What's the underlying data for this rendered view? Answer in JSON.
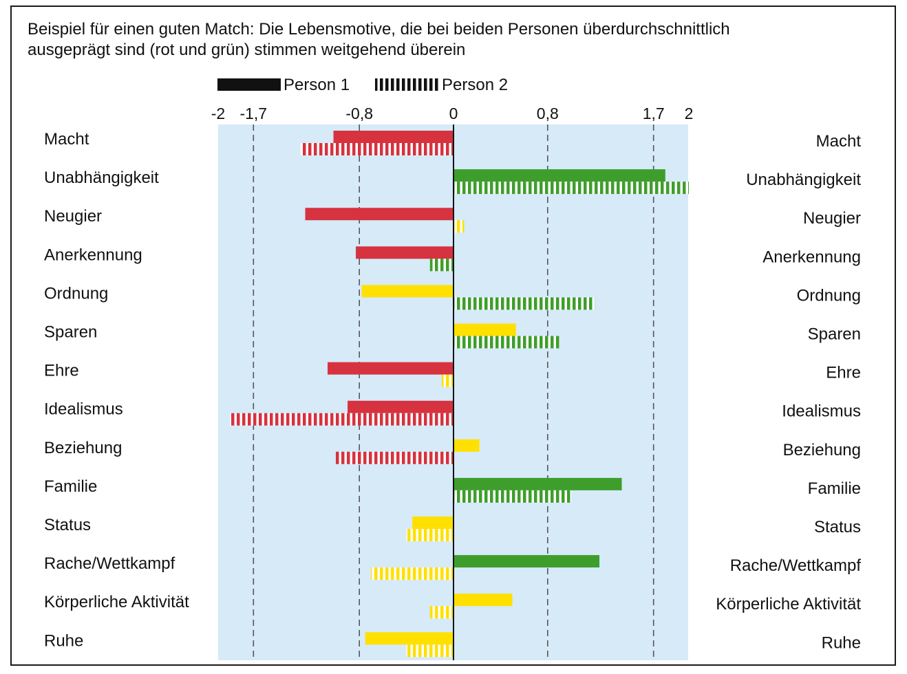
{
  "title_lines": [
    "Beispiel für einen guten Match: Die Lebensmotive, die bei beiden Personen überdurchschnittlich",
    "ausgeprägt sind (rot und grün) stimmen weitgehend überein"
  ],
  "chart_data": {
    "type": "bar",
    "orientation": "horizontal",
    "title": "Beispiel für einen guten Match: Die Lebensmotive, die bei beiden Personen überdurchschnittlich ausgeprägt sind (rot und grün) stimmen weitgehend überein",
    "xlim": [
      -2,
      2
    ],
    "tick_labels": [
      "-2",
      "-1,7",
      "-0,8",
      "0",
      "0,8",
      "1,7",
      "2"
    ],
    "tick_values": [
      -2,
      -1.7,
      -0.8,
      0,
      0.8,
      1.7,
      2
    ],
    "dashed_reference_lines": [
      -1.7,
      -0.8,
      0.8,
      1.7
    ],
    "background_color": "#d6eaf8",
    "color_rule": {
      "red": "#d6323f",
      "yellow": "#ffe000",
      "green": "#3e9e2c"
    },
    "legend": {
      "placement": "top",
      "entries": [
        {
          "label": "Person 1",
          "style": "solid"
        },
        {
          "label": "Person 2",
          "style": "striped"
        }
      ]
    },
    "categories": [
      "Macht",
      "Unabhängigkeit",
      "Neugier",
      "Anerkennung",
      "Ordnung",
      "Sparen",
      "Ehre",
      "Idealismus",
      "Beziehung",
      "Familie",
      "Status",
      "Rache/Wettkampf",
      "Körperliche Aktivität",
      "Ruhe"
    ],
    "series": [
      {
        "name": "Person 1",
        "style": "solid",
        "values": [
          -1.02,
          1.8,
          -1.26,
          -0.83,
          -0.78,
          0.53,
          -1.07,
          -0.9,
          0.22,
          1.43,
          -0.35,
          1.24,
          0.5,
          -0.75
        ],
        "colors": [
          "red",
          "green",
          "red",
          "red",
          "yellow",
          "yellow",
          "red",
          "red",
          "yellow",
          "green",
          "yellow",
          "green",
          "yellow",
          "yellow"
        ]
      },
      {
        "name": "Person 2",
        "style": "striped",
        "values": [
          -1.3,
          2.0,
          0.09,
          -0.2,
          1.2,
          0.9,
          -0.1,
          -1.9,
          -1.0,
          1.0,
          -0.4,
          -0.7,
          -0.2,
          -0.4
        ],
        "colors": [
          "red",
          "green",
          "yellow",
          "green",
          "green",
          "green",
          "yellow",
          "red",
          "red",
          "green",
          "yellow",
          "yellow",
          "yellow",
          "yellow"
        ]
      }
    ]
  }
}
